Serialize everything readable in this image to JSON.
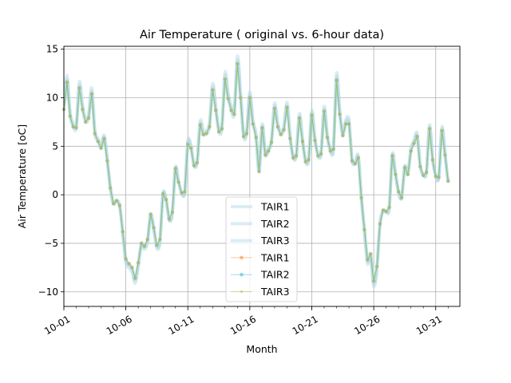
{
  "chart_data": {
    "type": "line",
    "title": "Air Temperature ( original vs. 6-hour data)",
    "xlabel": "Month",
    "ylabel": "Air Temperature [oC]",
    "x_range": [
      "10-01",
      "11-02"
    ],
    "x_ticks": [
      "10-01",
      "10-06",
      "10-11",
      "10-16",
      "10-21",
      "10-26",
      "10-31"
    ],
    "ylim": [
      -11.5,
      15.3
    ],
    "y_ticks": [
      -10,
      -5,
      0,
      5,
      10,
      15
    ],
    "y_tick_labels": [
      "−10",
      "−5",
      "0",
      "5",
      "10",
      "15"
    ],
    "grid": true,
    "legend_position": "lower-center",
    "colors": {
      "original_band": "#add8e6",
      "tair1_6h": "#f5a05a",
      "tair2_6h": "#5bc8e0",
      "tair3_6h": "#b0c84a",
      "green_line": "#8fbf6a"
    },
    "series": [
      {
        "name": "TAIR1",
        "style": "original"
      },
      {
        "name": "TAIR2",
        "style": "original"
      },
      {
        "name": "TAIR3",
        "style": "original"
      },
      {
        "name": "TAIR1",
        "style": "6-hour"
      },
      {
        "name": "TAIR2",
        "style": "6-hour"
      },
      {
        "name": "TAIR3",
        "style": "6-hour"
      }
    ],
    "daily_pattern": {
      "start": "10-01",
      "step_days": 0.25,
      "values": [
        8.8,
        11.6,
        8.1,
        7.0,
        6.9,
        11.0,
        8.8,
        7.5,
        7.9,
        10.4,
        6.3,
        5.5,
        4.8,
        5.8,
        3.5,
        0.7,
        -0.9,
        -0.6,
        -1.1,
        -3.8,
        -6.6,
        -7.1,
        -7.5,
        -8.6,
        -7.0,
        -5.0,
        -5.3,
        -4.6,
        -2.0,
        -3.4,
        -5.2,
        -4.6,
        0.1,
        -0.5,
        -2.5,
        -1.8,
        2.7,
        1.3,
        0.2,
        0.3,
        5.2,
        4.8,
        3.0,
        3.3,
        7.2,
        6.2,
        6.3,
        7.0,
        10.8,
        8.7,
        6.5,
        6.8,
        11.9,
        9.9,
        8.7,
        8.3,
        13.5,
        10.0,
        6.0,
        6.3,
        10.0,
        7.3,
        5.9,
        2.4,
        6.9,
        4.1,
        4.5,
        5.4,
        8.9,
        7.0,
        6.2,
        6.7,
        9.0,
        5.8,
        3.8,
        4.0,
        7.9,
        5.5,
        3.4,
        3.6,
        8.2,
        5.6,
        4.0,
        4.2,
        8.6,
        5.9,
        4.5,
        4.7,
        11.8,
        8.3,
        6.1,
        7.3,
        7.3,
        3.5,
        3.2,
        3.8,
        -0.3,
        -3.6,
        -6.7,
        -6.1,
        -8.9,
        -7.4,
        -3.0,
        -1.6,
        -1.7,
        -1.3,
        4.0,
        2.1,
        0.3,
        -0.3,
        2.8,
        2.1,
        4.5,
        5.3,
        6.0,
        2.9,
        2.0,
        2.3,
        6.8,
        3.6,
        1.9,
        1.8,
        6.6,
        4.1,
        1.4
      ]
    }
  }
}
